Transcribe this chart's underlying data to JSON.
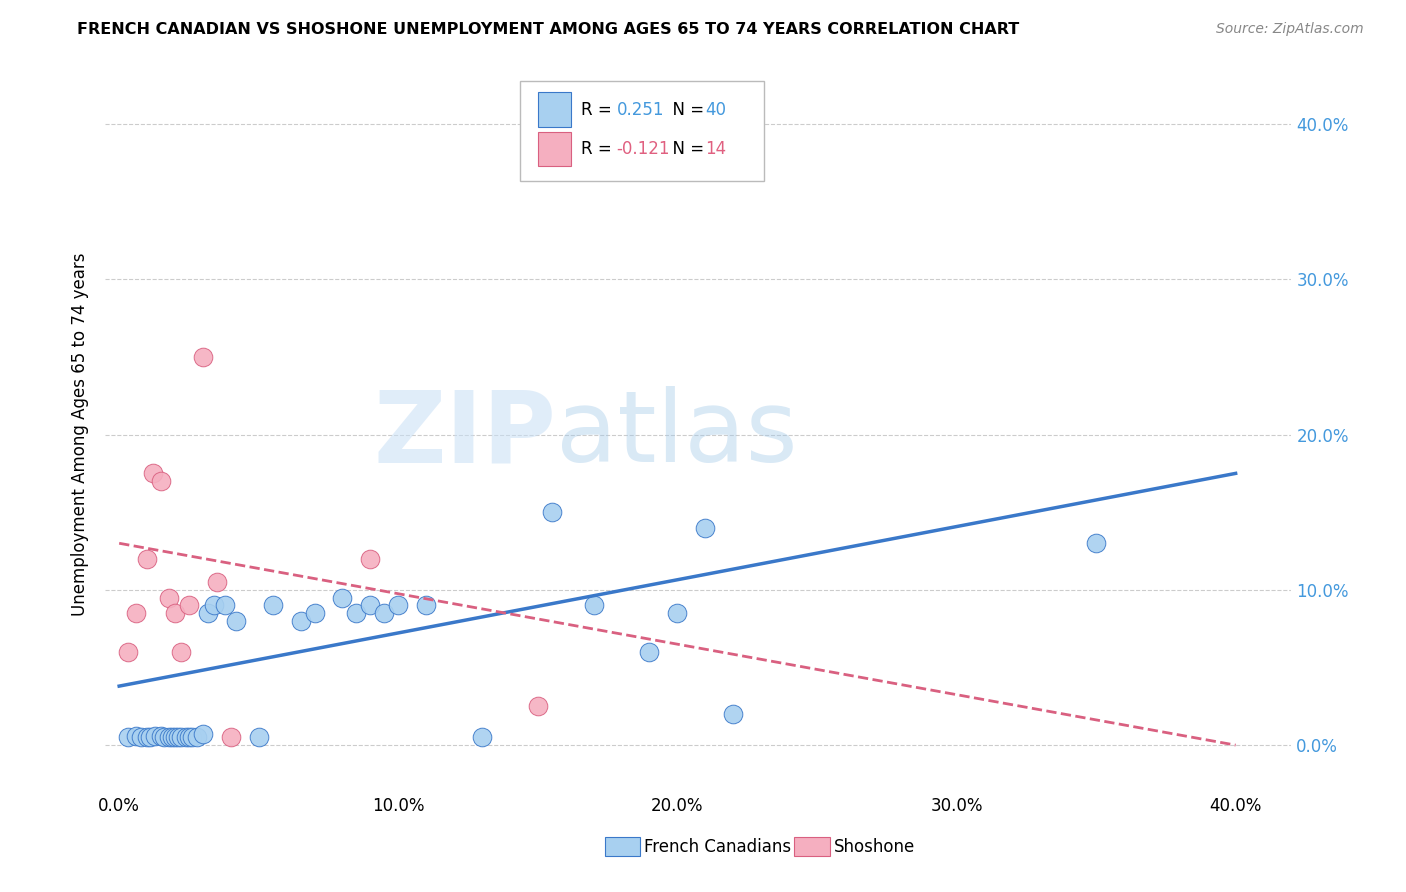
{
  "title": "FRENCH CANADIAN VS SHOSHONE UNEMPLOYMENT AMONG AGES 65 TO 74 YEARS CORRELATION CHART",
  "source": "Source: ZipAtlas.com",
  "ylabel": "Unemployment Among Ages 65 to 74 years",
  "x_tick_labels": [
    "0.0%",
    "10.0%",
    "20.0%",
    "30.0%",
    "40.0%"
  ],
  "y_tick_labels": [
    "0.0%",
    "10.0%",
    "20.0%",
    "30.0%",
    "40.0%"
  ],
  "x_tick_values": [
    0.0,
    0.1,
    0.2,
    0.3,
    0.4
  ],
  "y_tick_values": [
    0.0,
    0.1,
    0.2,
    0.3,
    0.4
  ],
  "xlim": [
    -0.005,
    0.42
  ],
  "ylim": [
    -0.03,
    0.43
  ],
  "legend_label1": "French Canadians",
  "legend_label2": "Shoshone",
  "R1": "0.251",
  "N1": "40",
  "R2": "-0.121",
  "N2": "14",
  "color_blue": "#a8d0f0",
  "color_pink": "#f5afc0",
  "trendline_blue": "#3a78c9",
  "trendline_pink": "#d96080",
  "watermark_zip": "ZIP",
  "watermark_atlas": "atlas",
  "blue_x": [
    0.003,
    0.006,
    0.008,
    0.01,
    0.011,
    0.013,
    0.015,
    0.016,
    0.018,
    0.019,
    0.02,
    0.021,
    0.022,
    0.024,
    0.025,
    0.026,
    0.028,
    0.03,
    0.032,
    0.034,
    0.038,
    0.042,
    0.05,
    0.055,
    0.065,
    0.07,
    0.08,
    0.085,
    0.09,
    0.095,
    0.1,
    0.11,
    0.13,
    0.155,
    0.17,
    0.19,
    0.2,
    0.21,
    0.22,
    0.35
  ],
  "blue_y": [
    0.005,
    0.006,
    0.005,
    0.005,
    0.005,
    0.006,
    0.006,
    0.005,
    0.005,
    0.005,
    0.005,
    0.005,
    0.005,
    0.005,
    0.005,
    0.005,
    0.005,
    0.007,
    0.085,
    0.09,
    0.09,
    0.08,
    0.005,
    0.09,
    0.08,
    0.085,
    0.095,
    0.085,
    0.09,
    0.085,
    0.09,
    0.09,
    0.005,
    0.15,
    0.09,
    0.06,
    0.085,
    0.14,
    0.02,
    0.13
  ],
  "pink_x": [
    0.003,
    0.006,
    0.01,
    0.012,
    0.015,
    0.018,
    0.02,
    0.022,
    0.025,
    0.03,
    0.035,
    0.04,
    0.09,
    0.15
  ],
  "pink_y": [
    0.06,
    0.085,
    0.12,
    0.175,
    0.17,
    0.095,
    0.085,
    0.06,
    0.09,
    0.25,
    0.105,
    0.005,
    0.12,
    0.025
  ],
  "blue_trendline_x": [
    0.0,
    0.4
  ],
  "blue_trendline_y": [
    0.038,
    0.175
  ],
  "pink_trendline_x": [
    0.0,
    0.4
  ],
  "pink_trendline_y": [
    0.13,
    0.0
  ]
}
